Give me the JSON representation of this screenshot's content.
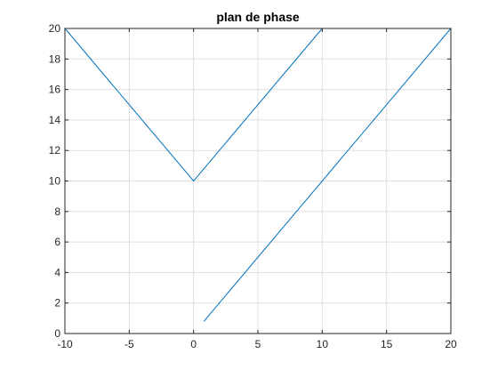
{
  "chart_data": {
    "type": "line",
    "title": "plan de phase",
    "xlabel": "",
    "ylabel": "",
    "xlim": [
      -10,
      20
    ],
    "ylim": [
      0,
      20
    ],
    "grid": true,
    "box": true,
    "x_ticks": [
      -10,
      -5,
      0,
      5,
      10,
      15,
      20
    ],
    "x_tick_labels": [
      "-10",
      "-5",
      "0",
      "5",
      "10",
      "15",
      "20"
    ],
    "y_ticks": [
      0,
      2,
      4,
      6,
      8,
      10,
      12,
      14,
      16,
      18,
      20
    ],
    "y_tick_labels": [
      "0",
      "2",
      "4",
      "6",
      "8",
      "10",
      "12",
      "14",
      "16",
      "18",
      "20"
    ],
    "series": [
      {
        "color": "#0072bd",
        "x": [
          0.8,
          20,
          -10,
          0,
          10
        ],
        "y": [
          0.8,
          20,
          20,
          10,
          20
        ]
      }
    ]
  },
  "colors": {
    "background": "#ffffff",
    "axes": "#262626",
    "grid": "#dfdfdf",
    "line": "#0072bd"
  }
}
